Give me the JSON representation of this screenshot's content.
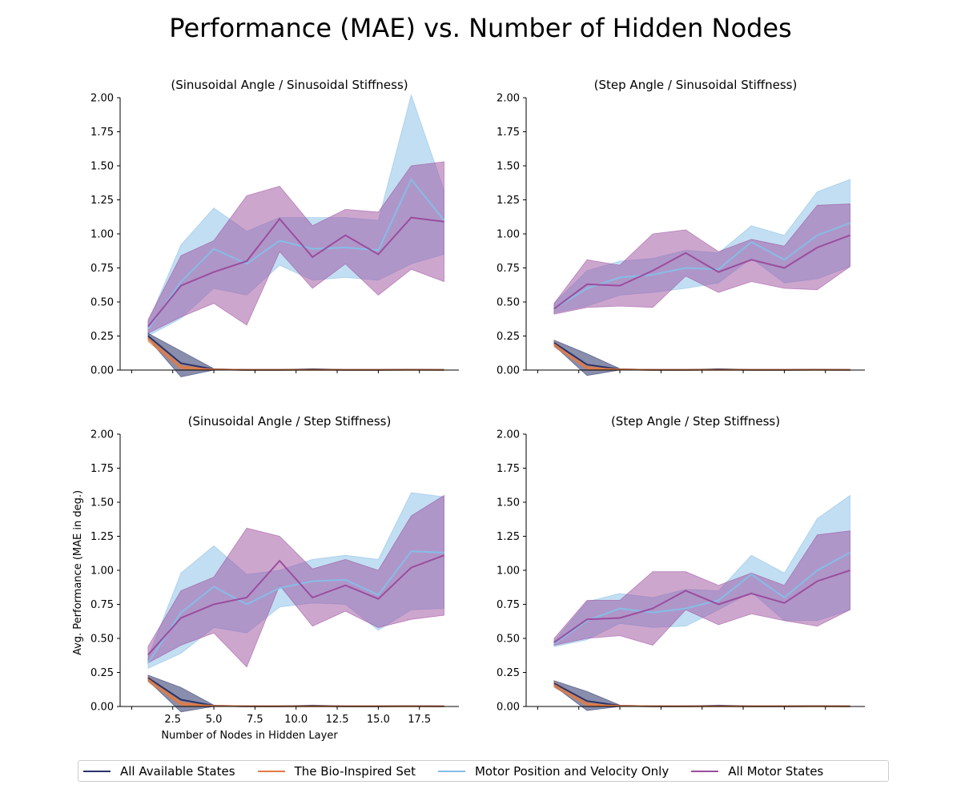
{
  "title": "Performance (MAE) vs. Number of Hidden Nodes",
  "colors": {
    "all_available": "#283269",
    "bio_inspired": "#e07b45",
    "motor_pos_vel": "#86bde6",
    "all_motor": "#9b4d9e"
  },
  "legend": [
    {
      "label": "All Available States",
      "color": "#283269"
    },
    {
      "label": "The Bio-Inspired Set",
      "color": "#e07b45"
    },
    {
      "label": "Motor Position and Velocity Only",
      "color": "#86bde6"
    },
    {
      "label": "All Motor States",
      "color": "#9b4d9e"
    }
  ],
  "chart_data": [
    {
      "type": "line",
      "title": "(Sinusoidal Angle / Sinusoidal Stiffness)",
      "xlabel": "",
      "ylabel": "",
      "xlim": [
        -0.7,
        19.9
      ],
      "ylim": [
        0,
        2.0
      ],
      "yticks": [
        "0.00",
        "0.25",
        "0.50",
        "0.75",
        "1.00",
        "1.25",
        "1.50",
        "1.75",
        "2.00"
      ],
      "xticks": [],
      "x": [
        1,
        3,
        5,
        7,
        9,
        11,
        13,
        15,
        17,
        19
      ],
      "series": [
        {
          "name": "All Available States",
          "key": "all_available",
          "values": [
            0.25,
            0.05,
            0.005,
            0.002,
            0.002,
            0.004,
            0.002,
            0.002,
            0.003,
            0.002
          ],
          "lower": [
            0.23,
            -0.05,
            0.0,
            0.0,
            0.0,
            0.0,
            0.0,
            0.0,
            0.0,
            0.0
          ],
          "upper": [
            0.27,
            0.14,
            0.01,
            0.004,
            0.004,
            0.01,
            0.004,
            0.004,
            0.006,
            0.004
          ]
        },
        {
          "name": "The Bio-Inspired Set",
          "key": "bio_inspired",
          "values": [
            0.23,
            0.02,
            0.004,
            0.002,
            0.002,
            0.002,
            0.002,
            0.002,
            0.002,
            0.002
          ],
          "lower": [
            0.21,
            0.005,
            0.0,
            0.0,
            0.0,
            0.0,
            0.0,
            0.0,
            0.0,
            0.0
          ],
          "upper": [
            0.25,
            0.035,
            0.008,
            0.004,
            0.004,
            0.004,
            0.004,
            0.004,
            0.004,
            0.004
          ]
        },
        {
          "name": "Motor Position and Velocity Only",
          "key": "motor_pos_vel",
          "values": [
            0.3,
            0.65,
            0.89,
            0.78,
            0.95,
            0.89,
            0.9,
            0.88,
            1.4,
            1.1
          ],
          "lower": [
            0.25,
            0.38,
            0.6,
            0.55,
            0.77,
            0.66,
            0.68,
            0.66,
            0.78,
            0.85
          ],
          "upper": [
            0.35,
            0.92,
            1.19,
            1.02,
            1.12,
            1.12,
            1.12,
            1.1,
            2.02,
            1.32
          ]
        },
        {
          "name": "All Motor States",
          "key": "all_motor",
          "values": [
            0.32,
            0.62,
            0.72,
            0.8,
            1.11,
            0.83,
            0.99,
            0.85,
            1.12,
            1.09
          ],
          "lower": [
            0.27,
            0.39,
            0.49,
            0.33,
            0.87,
            0.6,
            0.78,
            0.55,
            0.74,
            0.65
          ],
          "upper": [
            0.37,
            0.84,
            0.95,
            1.28,
            1.35,
            1.06,
            1.18,
            1.16,
            1.5,
            1.53
          ]
        }
      ]
    },
    {
      "type": "line",
      "title": "(Step Angle / Sinusoidal Stiffness)",
      "xlabel": "",
      "ylabel": "",
      "xlim": [
        -0.7,
        19.9
      ],
      "ylim": [
        0,
        2.0
      ],
      "yticks": [
        "0.00",
        "0.25",
        "0.50",
        "0.75",
        "1.00",
        "1.25",
        "1.50",
        "1.75",
        "2.00"
      ],
      "xticks": [],
      "x": [
        1,
        3,
        5,
        7,
        9,
        11,
        13,
        15,
        17,
        19
      ],
      "series": [
        {
          "name": "All Available States",
          "key": "all_available",
          "values": [
            0.2,
            0.04,
            0.005,
            0.002,
            0.002,
            0.004,
            0.002,
            0.002,
            0.003,
            0.002
          ],
          "lower": [
            0.18,
            -0.04,
            0.0,
            0.0,
            0.0,
            0.0,
            0.0,
            0.0,
            0.0,
            0.0
          ],
          "upper": [
            0.22,
            0.12,
            0.01,
            0.004,
            0.004,
            0.01,
            0.004,
            0.004,
            0.006,
            0.004
          ]
        },
        {
          "name": "The Bio-Inspired Set",
          "key": "bio_inspired",
          "values": [
            0.19,
            0.015,
            0.004,
            0.002,
            0.002,
            0.002,
            0.002,
            0.002,
            0.002,
            0.002
          ],
          "lower": [
            0.17,
            0.005,
            0.0,
            0.0,
            0.0,
            0.0,
            0.0,
            0.0,
            0.0,
            0.0
          ],
          "upper": [
            0.21,
            0.03,
            0.008,
            0.004,
            0.004,
            0.004,
            0.004,
            0.004,
            0.004,
            0.004
          ]
        },
        {
          "name": "Motor Position and Velocity Only",
          "key": "motor_pos_vel",
          "values": [
            0.45,
            0.6,
            0.68,
            0.7,
            0.75,
            0.74,
            0.94,
            0.81,
            0.99,
            1.08
          ],
          "lower": [
            0.42,
            0.47,
            0.55,
            0.57,
            0.6,
            0.64,
            0.82,
            0.64,
            0.67,
            0.76
          ],
          "upper": [
            0.49,
            0.73,
            0.8,
            0.82,
            0.88,
            0.86,
            1.06,
            0.99,
            1.31,
            1.4
          ]
        },
        {
          "name": "All Motor States",
          "key": "all_motor",
          "values": [
            0.45,
            0.63,
            0.62,
            0.73,
            0.86,
            0.72,
            0.81,
            0.75,
            0.9,
            0.99
          ],
          "lower": [
            0.41,
            0.46,
            0.47,
            0.46,
            0.69,
            0.57,
            0.65,
            0.6,
            0.59,
            0.76
          ],
          "upper": [
            0.49,
            0.81,
            0.77,
            1.0,
            1.03,
            0.87,
            0.96,
            0.91,
            1.21,
            1.22
          ]
        }
      ]
    },
    {
      "type": "line",
      "title": "(Sinusoidal Angle / Step Stiffness)",
      "xlabel": "Number of Nodes in Hidden Layer",
      "ylabel": "Avg. Performance (MAE in deg.)",
      "xlim": [
        -0.7,
        19.9
      ],
      "ylim": [
        0,
        2.0
      ],
      "yticks": [
        "0.00",
        "0.25",
        "0.50",
        "0.75",
        "1.00",
        "1.25",
        "1.50",
        "1.75",
        "2.00"
      ],
      "xticks": [
        "2.5",
        "5.0",
        "7.5",
        "10.0",
        "12.5",
        "15.0",
        "17.5"
      ],
      "x": [
        1,
        3,
        5,
        7,
        9,
        11,
        13,
        15,
        17,
        19
      ],
      "series": [
        {
          "name": "All Available States",
          "key": "all_available",
          "values": [
            0.21,
            0.05,
            0.005,
            0.002,
            0.002,
            0.004,
            0.002,
            0.002,
            0.003,
            0.002
          ],
          "lower": [
            0.19,
            -0.04,
            0.0,
            0.0,
            0.0,
            0.0,
            0.0,
            0.0,
            0.0,
            0.0
          ],
          "upper": [
            0.23,
            0.14,
            0.01,
            0.004,
            0.004,
            0.01,
            0.004,
            0.004,
            0.006,
            0.004
          ]
        },
        {
          "name": "The Bio-Inspired Set",
          "key": "bio_inspired",
          "values": [
            0.2,
            0.02,
            0.004,
            0.002,
            0.002,
            0.002,
            0.002,
            0.002,
            0.002,
            0.002
          ],
          "lower": [
            0.18,
            0.005,
            0.0,
            0.0,
            0.0,
            0.0,
            0.0,
            0.0,
            0.0,
            0.0
          ],
          "upper": [
            0.22,
            0.035,
            0.008,
            0.004,
            0.004,
            0.004,
            0.004,
            0.004,
            0.004,
            0.004
          ]
        },
        {
          "name": "Motor Position and Velocity Only",
          "key": "motor_pos_vel",
          "values": [
            0.32,
            0.69,
            0.88,
            0.75,
            0.87,
            0.92,
            0.93,
            0.82,
            1.14,
            1.13
          ],
          "lower": [
            0.28,
            0.39,
            0.58,
            0.54,
            0.73,
            0.76,
            0.75,
            0.56,
            0.71,
            0.72
          ],
          "upper": [
            0.36,
            0.98,
            1.18,
            0.97,
            1.0,
            1.08,
            1.11,
            1.08,
            1.57,
            1.54
          ]
        },
        {
          "name": "All Motor States",
          "key": "all_motor",
          "values": [
            0.38,
            0.65,
            0.75,
            0.8,
            1.07,
            0.8,
            0.89,
            0.79,
            1.02,
            1.11
          ],
          "lower": [
            0.32,
            0.45,
            0.54,
            0.29,
            0.89,
            0.59,
            0.7,
            0.58,
            0.64,
            0.67
          ],
          "upper": [
            0.44,
            0.85,
            0.95,
            1.31,
            1.25,
            1.01,
            1.08,
            1.0,
            1.4,
            1.55
          ]
        }
      ]
    },
    {
      "type": "line",
      "title": "(Step Angle / Step Stiffness)",
      "xlabel": "",
      "ylabel": "",
      "xlim": [
        -0.7,
        19.9
      ],
      "ylim": [
        0,
        2.0
      ],
      "yticks": [
        "0.00",
        "0.25",
        "0.50",
        "0.75",
        "1.00",
        "1.25",
        "1.50",
        "1.75",
        "2.00"
      ],
      "xticks": [],
      "x": [
        1,
        3,
        5,
        7,
        9,
        11,
        13,
        15,
        17,
        19
      ],
      "series": [
        {
          "name": "All Available States",
          "key": "all_available",
          "values": [
            0.17,
            0.04,
            0.005,
            0.002,
            0.002,
            0.004,
            0.002,
            0.002,
            0.003,
            0.002
          ],
          "lower": [
            0.15,
            -0.03,
            0.0,
            0.0,
            0.0,
            0.0,
            0.0,
            0.0,
            0.0,
            0.0
          ],
          "upper": [
            0.19,
            0.11,
            0.01,
            0.004,
            0.004,
            0.01,
            0.004,
            0.004,
            0.006,
            0.004
          ]
        },
        {
          "name": "The Bio-Inspired Set",
          "key": "bio_inspired",
          "values": [
            0.16,
            0.015,
            0.004,
            0.002,
            0.002,
            0.002,
            0.002,
            0.002,
            0.002,
            0.002
          ],
          "lower": [
            0.14,
            0.005,
            0.0,
            0.0,
            0.0,
            0.0,
            0.0,
            0.0,
            0.0,
            0.0
          ],
          "upper": [
            0.18,
            0.03,
            0.008,
            0.004,
            0.004,
            0.004,
            0.004,
            0.004,
            0.004,
            0.004
          ]
        },
        {
          "name": "Motor Position and Velocity Only",
          "key": "motor_pos_vel",
          "values": [
            0.46,
            0.63,
            0.72,
            0.69,
            0.72,
            0.78,
            0.97,
            0.8,
            1.0,
            1.13
          ],
          "lower": [
            0.44,
            0.49,
            0.61,
            0.58,
            0.59,
            0.71,
            0.84,
            0.63,
            0.63,
            0.71
          ],
          "upper": [
            0.48,
            0.77,
            0.83,
            0.8,
            0.86,
            0.85,
            1.11,
            0.98,
            1.38,
            1.55
          ]
        },
        {
          "name": "All Motor States",
          "key": "all_motor",
          "values": [
            0.47,
            0.64,
            0.65,
            0.72,
            0.85,
            0.75,
            0.83,
            0.76,
            0.92,
            1.0
          ],
          "lower": [
            0.45,
            0.5,
            0.52,
            0.45,
            0.71,
            0.6,
            0.68,
            0.63,
            0.59,
            0.71
          ],
          "upper": [
            0.5,
            0.78,
            0.78,
            0.99,
            0.99,
            0.89,
            0.98,
            0.89,
            1.26,
            1.29
          ]
        }
      ]
    }
  ]
}
